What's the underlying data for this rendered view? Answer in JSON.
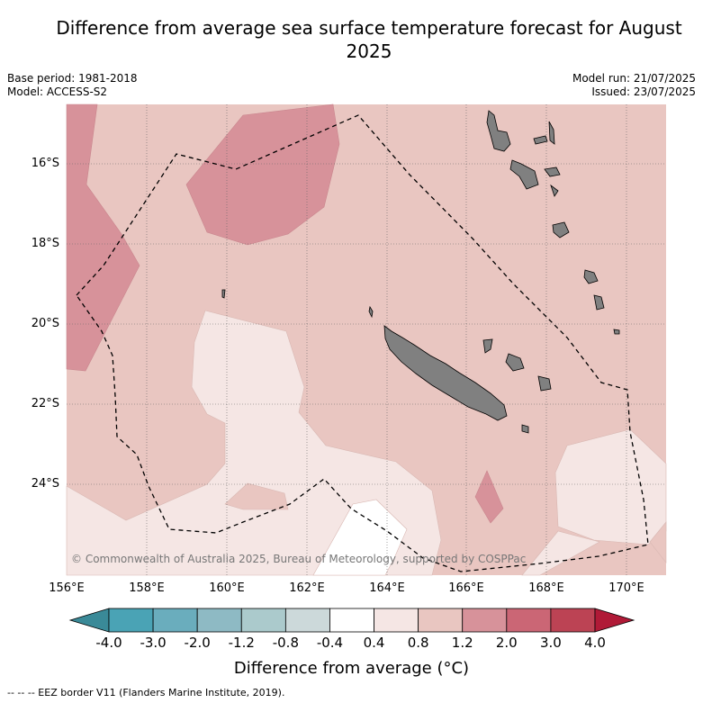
{
  "title": "Difference from average sea surface temperature forecast for August 2025",
  "meta_left": {
    "base_period": "Base period: 1981-2018",
    "model": "Model: ACCESS-S2"
  },
  "meta_right": {
    "model_run": "Model run: 21/07/2025",
    "issued": "Issued: 23/07/2025"
  },
  "copyright": "© Commonwealth of Australia 2025, Bureau of Meteorology, supported by COSPPac",
  "lat_labels": [
    "16°S",
    "18°S",
    "20°S",
    "22°S",
    "24°S"
  ],
  "lon_labels": [
    "156°E",
    "158°E",
    "160°E",
    "162°E",
    "164°E",
    "166°E",
    "168°E",
    "170°E"
  ],
  "colorbar": {
    "ticks": [
      "-4.0",
      "-3.0",
      "-2.0",
      "-1.2",
      "-0.8",
      "-0.4",
      "0.4",
      "0.8",
      "1.2",
      "2.0",
      "3.0",
      "4.0"
    ],
    "colors": [
      "#4aa3b5",
      "#6aadbd",
      "#8ebac4",
      "#abcacc",
      "#ccd9da",
      "#ffffff",
      "#f5e6e4",
      "#e9c6c1",
      "#d7929a",
      "#cb6675",
      "#bc4354"
    ],
    "under_color": "#3a8a98",
    "over_color": "#b01a37",
    "label": "Difference from average (°C)"
  },
  "land_color": "#808080",
  "eez_legend": "-- -- -- EEZ border V11 (Flanders Marine Institute, 2019)."
}
